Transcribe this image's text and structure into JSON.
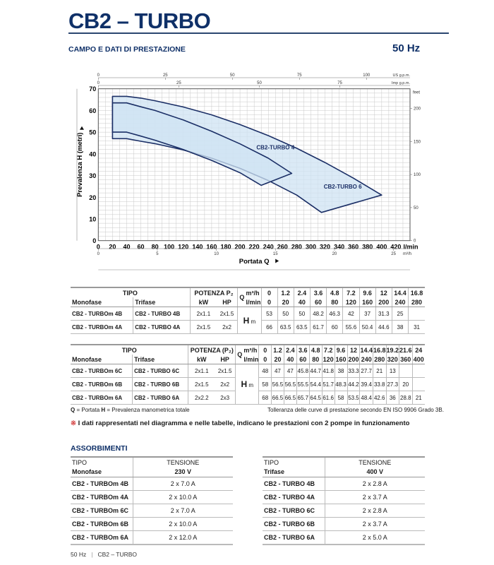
{
  "header": {
    "title": "CB2 – TURBO",
    "subtitle": "CAMPO E DATI DI PRESTAZIONE",
    "frequency": "50 Hz"
  },
  "colors": {
    "brand": "#0f3068",
    "curve": "#1b2f66",
    "fill": "#cfe3f3",
    "grid": "#c8c8c8",
    "note_mark": "#d23a3a"
  },
  "chart_data": {
    "type": "area",
    "xlabel": "Portata  Q",
    "ylabel": "Prevalenza  H (metri)",
    "x_unit": "l/min",
    "xlim": [
      0,
      440
    ],
    "ylim": [
      0,
      70
    ],
    "grid": true,
    "x_ticks": [
      0,
      20,
      40,
      60,
      80,
      100,
      120,
      140,
      160,
      180,
      200,
      220,
      240,
      260,
      280,
      300,
      320,
      340,
      360,
      380,
      400,
      420
    ],
    "y_ticks": [
      0,
      10,
      20,
      30,
      40,
      50,
      60,
      70
    ],
    "secondary_axes": {
      "us_gpm": {
        "label": "US g.p.m.",
        "ticks": [
          0,
          25,
          50,
          75,
          100
        ]
      },
      "imp_gpm": {
        "label": "Imp g.p.m.",
        "ticks": [
          0,
          25,
          50,
          75
        ]
      },
      "m3h": {
        "label": "m³/h",
        "ticks": [
          0,
          5,
          10,
          15,
          20,
          25
        ]
      },
      "feet": {
        "label": "feet",
        "ticks": [
          0,
          50,
          100,
          150,
          200
        ]
      }
    },
    "series": [
      {
        "name": "CB2-TURBO 6",
        "upper": [
          [
            20,
            66.5
          ],
          [
            40,
            66.5
          ],
          [
            60,
            65.7
          ],
          [
            80,
            64.5
          ],
          [
            120,
            61.6
          ],
          [
            160,
            58
          ],
          [
            200,
            53.5
          ],
          [
            240,
            48.4
          ],
          [
            280,
            42.6
          ],
          [
            320,
            36
          ],
          [
            360,
            28.8
          ],
          [
            400,
            21
          ]
        ],
        "lower": [
          [
            20,
            47
          ],
          [
            40,
            47
          ],
          [
            60,
            45.8
          ],
          [
            80,
            44.7
          ],
          [
            120,
            41.8
          ],
          [
            160,
            38
          ],
          [
            200,
            33.3
          ],
          [
            240,
            27.7
          ],
          [
            280,
            21
          ],
          [
            315,
            13
          ]
        ]
      },
      {
        "name": "CB2-TURBO 4",
        "upper": [
          [
            20,
            63.5
          ],
          [
            40,
            63.5
          ],
          [
            60,
            61.7
          ],
          [
            80,
            60
          ],
          [
            120,
            55.6
          ],
          [
            160,
            50.4
          ],
          [
            200,
            44.6
          ],
          [
            240,
            38
          ],
          [
            273,
            31
          ]
        ],
        "lower": [
          [
            20,
            50
          ],
          [
            40,
            50
          ],
          [
            60,
            48.2
          ],
          [
            80,
            46.3
          ],
          [
            120,
            42
          ],
          [
            160,
            37
          ],
          [
            200,
            31.3
          ],
          [
            230,
            25.5
          ]
        ]
      }
    ]
  },
  "perf_tables": [
    {
      "tipo": "TIPO",
      "potenza": "POTENZA P₂",
      "monofase": "Monofase",
      "trifase": "Trifase",
      "kw": "kW",
      "hp": "HP",
      "q": "Q",
      "unit_m3h": "m³/h",
      "unit_lmin": "l/min",
      "h": "H",
      "h_unit": "m",
      "q_m3h": [
        "0",
        "1.2",
        "2.4",
        "3.6",
        "4.8",
        "7.2",
        "9.6",
        "12",
        "14.4",
        "16.8"
      ],
      "q_lmin": [
        "0",
        "20",
        "40",
        "60",
        "80",
        "120",
        "160",
        "200",
        "240",
        "280"
      ],
      "rows": [
        {
          "mono": "CB2 - TURBOm 4B",
          "tri": "CB2 - TURBO 4B",
          "kw": "2x1.1",
          "hp": "2x1.5",
          "h": [
            "53",
            "50",
            "50",
            "48.2",
            "46.3",
            "42",
            "37",
            "31.3",
            "25",
            ""
          ]
        },
        {
          "mono": "CB2 - TURBOm 4A",
          "tri": "CB2 - TURBO 4A",
          "kw": "2x1.5",
          "hp": "2x2",
          "h": [
            "66",
            "63.5",
            "63.5",
            "61.7",
            "60",
            "55.6",
            "50.4",
            "44.6",
            "38",
            "31"
          ]
        }
      ]
    },
    {
      "tipo": "TIPO",
      "potenza": "POTENZA (P₂)",
      "monofase": "Monofase",
      "trifase": "Trifase",
      "kw": "kW",
      "hp": "HP",
      "q": "Q",
      "unit_m3h": "m³/h",
      "unit_lmin": "l/min",
      "h": "H",
      "h_unit": "m",
      "q_m3h": [
        "0",
        "1.2",
        "2.4",
        "3.6",
        "4.8",
        "7.2",
        "9.6",
        "12",
        "14.4",
        "16.8",
        "19.2",
        "21.6",
        "24"
      ],
      "q_lmin": [
        "0",
        "20",
        "40",
        "60",
        "80",
        "120",
        "160",
        "200",
        "240",
        "280",
        "320",
        "360",
        "400"
      ],
      "rows": [
        {
          "mono": "CB2 - TURBOm 6C",
          "tri": "CB2 - TURBO 6C",
          "kw": "2x1.1",
          "hp": "2x1.5",
          "h": [
            "48",
            "47",
            "47",
            "45.8",
            "44.7",
            "41.8",
            "38",
            "33.3",
            "27.7",
            "21",
            "13",
            "",
            ""
          ]
        },
        {
          "mono": "CB2 - TURBOm 6B",
          "tri": "CB2 - TURBO 6B",
          "kw": "2x1.5",
          "hp": "2x2",
          "h": [
            "58",
            "56.5",
            "56.5",
            "55.5",
            "54.4",
            "51.7",
            "48.3",
            "44.2",
            "39.4",
            "33.8",
            "27.3",
            "20",
            ""
          ]
        },
        {
          "mono": "CB2 - TURBOm 6A",
          "tri": "CB2 - TURBO 6A",
          "kw": "2x2.2",
          "hp": "2x3",
          "h": [
            "68",
            "66.5",
            "66.5",
            "65.7",
            "64.5",
            "61.6",
            "58",
            "53.5",
            "48.4",
            "42.6",
            "36",
            "28.8",
            "21"
          ]
        }
      ]
    }
  ],
  "notes": {
    "legend_q": "Q",
    "legend_q_text": " = Portata   ",
    "legend_h": "H",
    "legend_h_text": " = Prevalenza manometrica totale",
    "tolerance": "Tolleranza delle curve di prestazione secondo EN ISO 9906 Grado 3B.",
    "mark": "※",
    "main": " I dati rappresentati nel diagramma e nelle tabelle, indicano le prestazioni con 2 pompe in funzionamento"
  },
  "absorption": {
    "title": "ASSORBIMENTI",
    "tables": [
      {
        "tipo": "TIPO",
        "kind": "Monofase",
        "tensione": "TENSIONE",
        "voltage": "230 V",
        "rows": [
          [
            "CB2 - TURBOm 4B",
            "2 x 7.0 A"
          ],
          [
            "CB2 - TURBOm 4A",
            "2 x 10.0 A"
          ],
          [
            "CB2 - TURBOm 6C",
            "2 x 7.0 A"
          ],
          [
            "CB2 - TURBOm 6B",
            "2 x 10.0 A"
          ],
          [
            "CB2 - TURBOm 6A",
            "2 x 12.0 A"
          ]
        ]
      },
      {
        "tipo": "TIPO",
        "kind": "Trifase",
        "tensione": "TENSIONE",
        "voltage": "400 V",
        "rows": [
          [
            "CB2 - TURBO 4B",
            "2 x 2.8 A"
          ],
          [
            "CB2 - TURBO 4A",
            "2 x 3.7 A"
          ],
          [
            "CB2 - TURBO 6C",
            "2 x 2.8 A"
          ],
          [
            "CB2 - TURBO 6B",
            "2 x 3.7 A"
          ],
          [
            "CB2 - TURBO 6A",
            "2 x 5.0 A"
          ]
        ]
      }
    ]
  },
  "footer": {
    "freq": "50 Hz",
    "sep": "|",
    "product": "CB2 – TURBO"
  }
}
